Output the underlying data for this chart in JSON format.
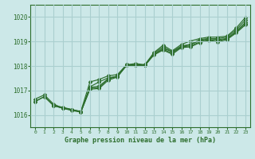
{
  "title": "Graphe pression niveau de la mer (hPa)",
  "xlim": [
    -0.5,
    23.5
  ],
  "ylim": [
    1015.5,
    1020.5
  ],
  "yticks": [
    1016,
    1017,
    1018,
    1019,
    1020
  ],
  "xticks": [
    0,
    1,
    2,
    3,
    4,
    5,
    6,
    7,
    8,
    9,
    10,
    11,
    12,
    13,
    14,
    15,
    16,
    17,
    18,
    19,
    20,
    21,
    22,
    23
  ],
  "bg_color": "#cce8e8",
  "grid_color": "#aacfcf",
  "line_color": "#2d6e2d",
  "series": [
    [
      1016.55,
      1016.75,
      1016.4,
      1016.28,
      1016.22,
      1016.15,
      1017.35,
      1017.45,
      1017.6,
      1017.65,
      1018.05,
      1018.1,
      1018.05,
      1018.55,
      1018.85,
      1018.62,
      1018.88,
      1019.02,
      1019.12,
      1019.18,
      1019.18,
      1019.22,
      1019.55,
      1019.98
    ],
    [
      1016.55,
      1016.75,
      1016.38,
      1016.28,
      1016.22,
      1016.12,
      1017.15,
      1017.35,
      1017.52,
      1017.58,
      1018.05,
      1018.02,
      1018.02,
      1018.52,
      1018.78,
      1018.58,
      1018.82,
      1018.88,
      1019.08,
      1019.12,
      1019.12,
      1019.18,
      1019.48,
      1019.88
    ],
    [
      null,
      null,
      1016.38,
      1016.28,
      1016.18,
      1016.12,
      1017.12,
      1017.18,
      1017.48,
      1017.58,
      1018.02,
      1018.05,
      1018.02,
      1018.48,
      1018.72,
      1018.58,
      1018.78,
      1018.88,
      1019.02,
      1019.12,
      1019.08,
      1019.12,
      1019.42,
      1019.78
    ],
    [
      null,
      null,
      1016.38,
      1016.32,
      1016.22,
      1016.12,
      1017.08,
      1017.12,
      1017.48,
      1017.58,
      1018.05,
      1018.05,
      1018.05,
      1018.48,
      1018.68,
      1018.52,
      1018.78,
      1018.82,
      1018.98,
      1019.08,
      1019.02,
      1019.12,
      1019.38,
      1019.72
    ],
    [
      1016.65,
      1016.82,
      1016.45,
      1016.28,
      1016.22,
      1016.12,
      1017.05,
      1017.08,
      1017.42,
      1017.55,
      1018.02,
      1018.02,
      1018.02,
      1018.45,
      1018.65,
      1018.48,
      1018.75,
      1018.78,
      1018.95,
      1019.05,
      1018.98,
      1019.08,
      1019.35,
      1019.68
    ]
  ]
}
